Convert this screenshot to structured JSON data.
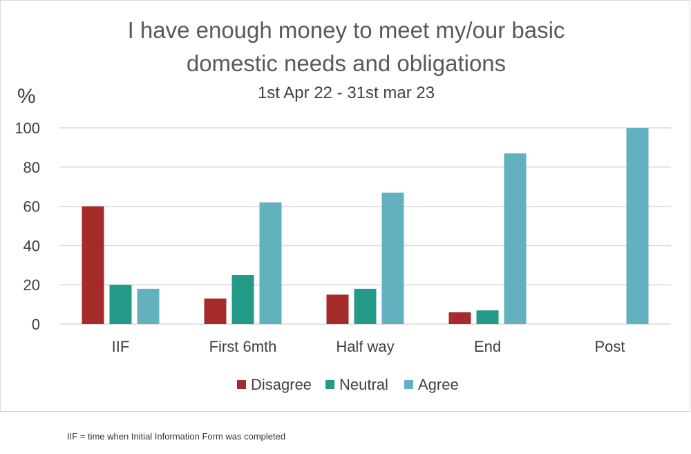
{
  "chart_data": {
    "type": "bar",
    "title": "I have enough money to meet my/our basic domestic needs and obligations",
    "title_lines": [
      "I have enough money to meet my/our basic",
      "domestic needs and obligations"
    ],
    "subtitle": "1st Apr 22 - 31st mar 23",
    "ylabel": "%",
    "xlabel": "",
    "categories": [
      "IIF",
      "First 6mth",
      "Half way",
      "End",
      "Post"
    ],
    "series": [
      {
        "name": "Disagree",
        "color": "#a52a2a",
        "values": [
          60,
          13,
          15,
          6,
          0
        ]
      },
      {
        "name": "Neutral",
        "color": "#239a88",
        "values": [
          20,
          25,
          18,
          7,
          0
        ]
      },
      {
        "name": "Agree",
        "color": "#63b1bf",
        "values": [
          18,
          62,
          67,
          87,
          100
        ]
      }
    ],
    "ylim": [
      0,
      100
    ],
    "yticks": [
      0,
      20,
      40,
      60,
      80,
      100
    ],
    "grid": true,
    "legend": "bottom-center"
  },
  "footnote": "IIF = time when Initial Information Form was completed"
}
